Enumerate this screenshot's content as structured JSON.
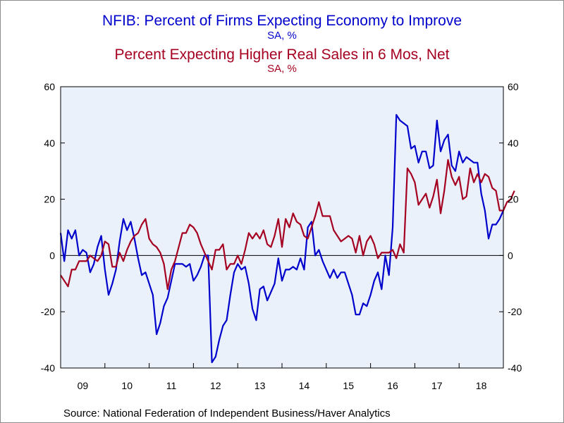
{
  "titles": {
    "series1_title": "NFIB: Percent of Firms Expecting Economy to Improve",
    "series1_subtitle": "SA, %",
    "series2_title": "Percent Expecting Higher Real Sales in 6 Mos, Net",
    "series2_subtitle": "SA, %"
  },
  "source": "Source:  National Federation of Independent Business/Haver Analytics",
  "colors": {
    "series1": "#0000cc",
    "series2": "#a50021",
    "plot_background": "#eaf1fb",
    "zero_line": "#000000"
  },
  "chart_data": {
    "type": "line",
    "title": "NFIB: Percent of Firms Expecting Economy to Improve",
    "ylim": [
      -40,
      60
    ],
    "yticks": [
      -40,
      -20,
      0,
      20,
      40,
      60
    ],
    "y2lim": [
      -40,
      60
    ],
    "y2ticks": [
      -40,
      -20,
      0,
      20,
      40,
      60
    ],
    "xlim": [
      2009.0,
      2019.0
    ],
    "x_tick_labels": [
      "09",
      "10",
      "11",
      "12",
      "13",
      "14",
      "15",
      "16",
      "17",
      "18"
    ],
    "grid": false,
    "legend": "none",
    "series": [
      {
        "name": "NFIB: Percent of Firms Expecting Economy to Improve",
        "color": "#0000cc",
        "x_start": 2009.0,
        "step": 0.08333,
        "values": [
          8,
          -2,
          9,
          6,
          9,
          0,
          2,
          1,
          -6,
          -3,
          3,
          7,
          -5,
          -14,
          -10,
          -5,
          5,
          13,
          9,
          12,
          6,
          -1,
          -7,
          -6,
          -10,
          -14,
          -28,
          -24,
          -18,
          -15,
          -9,
          -3,
          -3,
          -3,
          -4,
          -3,
          -9,
          -7,
          -4,
          0,
          0,
          -38,
          -36,
          -30,
          -25,
          -23,
          -14,
          -6,
          -3,
          -5,
          -4,
          -10,
          -19,
          -23,
          -12,
          -11,
          -16,
          -13,
          -10,
          -1,
          -9,
          -5,
          -5,
          -4,
          -5,
          -1,
          -5,
          10,
          12,
          0,
          2,
          -2,
          -5,
          -8,
          -5,
          -8,
          -6,
          -6,
          -10,
          -14,
          -21,
          -21,
          -17,
          -18,
          -14,
          -9,
          -6,
          -12,
          0,
          -7,
          10,
          50,
          48,
          47,
          46,
          38,
          39,
          33,
          37,
          37,
          31,
          32,
          48,
          37,
          41,
          43,
          32,
          30,
          37,
          33,
          35,
          34,
          33,
          33,
          22,
          16,
          6,
          11,
          11,
          13,
          16
        ]
      },
      {
        "name": "Percent Expecting Higher Real Sales in 6 Mos, Net",
        "color": "#a50021",
        "x_start": 2009.0,
        "step": 0.08333,
        "values": [
          -7,
          -9,
          -11,
          -5,
          -5,
          -2,
          -2,
          -2,
          0,
          -1,
          -2,
          0,
          5,
          4,
          -4,
          -4,
          1,
          -2,
          2,
          5,
          7,
          8,
          11,
          13,
          6,
          4,
          3,
          1,
          -3,
          -12,
          -5,
          -2,
          3,
          8,
          8,
          11,
          10,
          8,
          4,
          1,
          -2,
          -5,
          2,
          2,
          4,
          -5,
          -3,
          -3,
          0,
          -3,
          2,
          8,
          6,
          8,
          6,
          9,
          4,
          3,
          7,
          13,
          3,
          13,
          10,
          15,
          12,
          11,
          7,
          6,
          10,
          14,
          19,
          14,
          14,
          14,
          9,
          7,
          5,
          6,
          7,
          6,
          1,
          7,
          0,
          5,
          7,
          4,
          -1,
          1,
          1,
          1,
          2,
          -1,
          4,
          1,
          31,
          29,
          26,
          18,
          20,
          22,
          17,
          21,
          27,
          15,
          23,
          34,
          28,
          25,
          28,
          20,
          21,
          31,
          26,
          29,
          26,
          29,
          28,
          24,
          23,
          16,
          16,
          19,
          20,
          23
        ]
      }
    ]
  }
}
